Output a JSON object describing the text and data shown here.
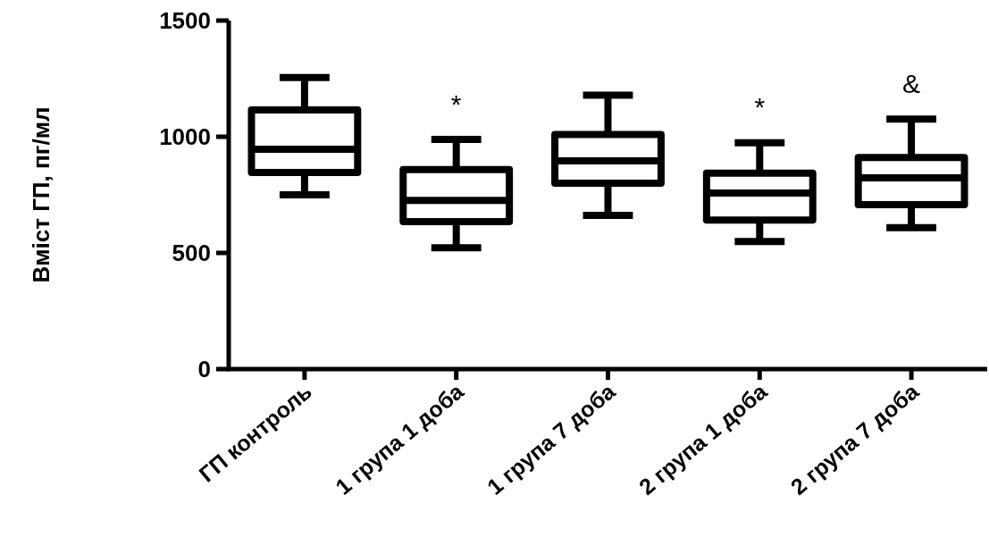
{
  "chart_data": {
    "type": "box",
    "ylabel": "Вміст ГП, пг/мл",
    "categories": [
      "ГП контроль",
      "1 група 1 доба",
      "1 група 7 доба",
      "2 група 1 доба",
      "2 група 7 доба"
    ],
    "boxes": [
      {
        "low": 750,
        "q1": 846,
        "median": 946,
        "q3": 1115,
        "high": 1255
      },
      {
        "low": 522,
        "q1": 635,
        "median": 726,
        "q3": 859,
        "high": 988
      },
      {
        "low": 662,
        "q1": 800,
        "median": 896,
        "q3": 1010,
        "high": 1179
      },
      {
        "low": 549,
        "q1": 641,
        "median": 758,
        "q3": 843,
        "high": 974
      },
      {
        "low": 609,
        "q1": 708,
        "median": 823,
        "q3": 911,
        "high": 1076
      }
    ],
    "color": "#000000",
    "ylim": [
      0,
      1500
    ],
    "yticks": [
      0,
      500,
      1000,
      1500
    ],
    "annotations": [
      "*",
      "*",
      "&"
    ]
  }
}
